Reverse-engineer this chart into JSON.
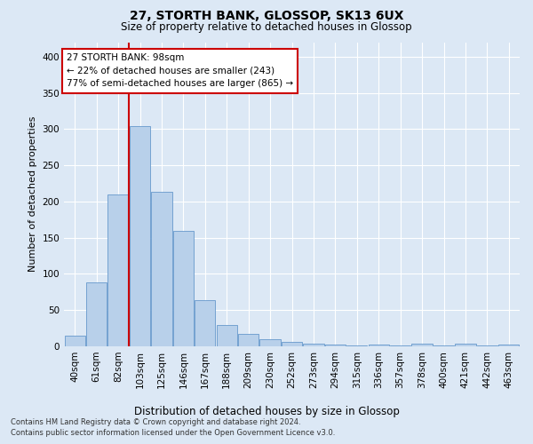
{
  "title1": "27, STORTH BANK, GLOSSOP, SK13 6UX",
  "title2": "Size of property relative to detached houses in Glossop",
  "xlabel": "Distribution of detached houses by size in Glossop",
  "ylabel": "Number of detached properties",
  "bar_labels": [
    "40sqm",
    "61sqm",
    "82sqm",
    "103sqm",
    "125sqm",
    "146sqm",
    "167sqm",
    "188sqm",
    "209sqm",
    "230sqm",
    "252sqm",
    "273sqm",
    "294sqm",
    "315sqm",
    "336sqm",
    "357sqm",
    "378sqm",
    "400sqm",
    "421sqm",
    "442sqm",
    "463sqm"
  ],
  "bar_values": [
    15,
    88,
    210,
    304,
    213,
    160,
    64,
    30,
    17,
    10,
    6,
    4,
    2,
    1,
    3,
    1,
    4,
    1,
    4,
    1,
    3
  ],
  "bar_color": "#b8d0ea",
  "bar_edge_color": "#6699cc",
  "vline_color": "#cc0000",
  "vline_x": 2.5,
  "annotation_line1": "27 STORTH BANK: 98sqm",
  "annotation_line2": "← 22% of detached houses are smaller (243)",
  "annotation_line3": "77% of semi-detached houses are larger (865) →",
  "annotation_box_color": "#ffffff",
  "annotation_box_edge": "#cc0000",
  "bg_color": "#dce8f5",
  "footer1": "Contains HM Land Registry data © Crown copyright and database right 2024.",
  "footer2": "Contains public sector information licensed under the Open Government Licence v3.0.",
  "ylim_max": 420,
  "yticks": [
    0,
    50,
    100,
    150,
    200,
    250,
    300,
    350,
    400
  ],
  "title1_fontsize": 10,
  "title2_fontsize": 8.5,
  "ylabel_fontsize": 8,
  "xlabel_fontsize": 8.5,
  "tick_fontsize": 7.5,
  "footer_fontsize": 6.0,
  "annot_fontsize": 7.5
}
